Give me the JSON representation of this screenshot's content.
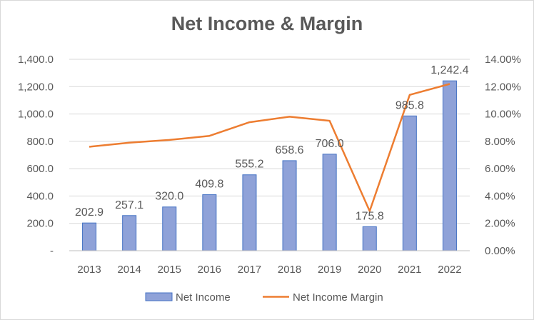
{
  "chart_data": {
    "type": "bar",
    "title": "Net Income & Margin",
    "categories": [
      "2013",
      "2014",
      "2015",
      "2016",
      "2017",
      "2018",
      "2019",
      "2020",
      "2021",
      "2022"
    ],
    "series": [
      {
        "name": "Net Income",
        "type": "bar",
        "axis": "left",
        "values": [
          202.9,
          257.1,
          320.0,
          409.8,
          555.2,
          658.6,
          706.0,
          175.8,
          985.8,
          1242.4
        ],
        "data_labels": [
          "202.9",
          "257.1",
          "320.0",
          "409.8",
          "555.2",
          "658.6",
          "706.0",
          "175.8",
          "985.8",
          "1,242.4"
        ],
        "color": "#8fa2d8",
        "border_color": "#4472c4"
      },
      {
        "name": "Net Income Margin",
        "type": "line",
        "axis": "right",
        "values": [
          0.076,
          0.079,
          0.081,
          0.084,
          0.094,
          0.098,
          0.095,
          0.029,
          0.114,
          0.122
        ],
        "color": "#ed7d31"
      }
    ],
    "y_left": {
      "ylim": [
        0,
        1400
      ],
      "ticks": [
        0,
        200,
        400,
        600,
        800,
        1000,
        1200,
        1400
      ],
      "tick_labels": [
        "-",
        "200.0",
        "400.0",
        "600.0",
        "800.0",
        "1,000.0",
        "1,200.0",
        "1,400.0"
      ]
    },
    "y_right": {
      "ylim": [
        0,
        0.14
      ],
      "ticks": [
        0,
        0.02,
        0.04,
        0.06,
        0.08,
        0.1,
        0.12,
        0.14
      ],
      "tick_labels": [
        "0.00%",
        "2.00%",
        "4.00%",
        "6.00%",
        "8.00%",
        "10.00%",
        "12.00%",
        "14.00%"
      ]
    },
    "grid": true,
    "legend_position": "bottom"
  }
}
